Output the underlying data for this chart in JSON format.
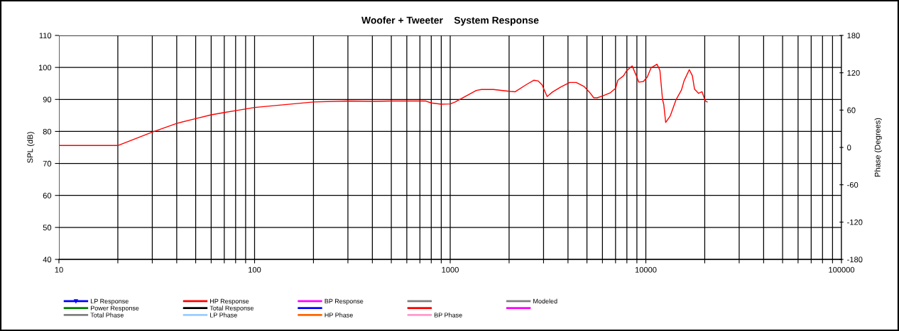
{
  "chart_data": {
    "type": "line",
    "title": "Woofer + Tweeter    System Response",
    "ylabel": "SPL (dB)",
    "y2label": "Phase (Degrees)",
    "log": "x",
    "xlim": [
      10,
      100000
    ],
    "ylim": [
      40,
      110
    ],
    "y2lim": [
      -180,
      180
    ],
    "xticks": [
      10,
      {
        "value": 20,
        "label": null
      },
      {
        "value": 30,
        "label": null
      },
      {
        "value": 40,
        "label": null
      },
      {
        "value": 50,
        "label": null
      },
      {
        "value": 60,
        "label": null
      },
      {
        "value": 70,
        "label": null
      },
      {
        "value": 80,
        "label": null
      },
      {
        "value": 90,
        "label": null
      },
      100,
      {
        "value": 200,
        "label": null
      },
      {
        "value": 300,
        "label": null
      },
      {
        "value": 400,
        "label": null
      },
      {
        "value": 500,
        "label": null
      },
      {
        "value": 600,
        "label": null
      },
      {
        "value": 700,
        "label": null
      },
      {
        "value": 800,
        "label": null
      },
      {
        "value": 900,
        "label": null
      },
      1000,
      {
        "value": 2000,
        "label": null
      },
      {
        "value": 3000,
        "label": null
      },
      {
        "value": 4000,
        "label": null
      },
      {
        "value": 5000,
        "label": null
      },
      {
        "value": 6000,
        "label": null
      },
      {
        "value": 7000,
        "label": null
      },
      {
        "value": 8000,
        "label": null
      },
      {
        "value": 9000,
        "label": null
      },
      10000,
      {
        "value": 20000,
        "label": null
      },
      {
        "value": 30000,
        "label": null
      },
      {
        "value": 40000,
        "label": null
      },
      {
        "value": 50000,
        "label": null
      },
      {
        "value": 60000,
        "label": null
      },
      {
        "value": 70000,
        "label": null
      },
      {
        "value": 80000,
        "label": null
      },
      {
        "value": 90000,
        "label": null
      },
      100000
    ],
    "yticks": [
      40,
      50,
      60,
      70,
      80,
      90,
      100,
      110
    ],
    "y2ticks": [
      -180,
      -120,
      -60,
      0,
      60,
      120,
      180
    ],
    "grid": true,
    "legend": "bottom",
    "marker": "none",
    "line_style": "solid",
    "series": [
      {
        "name": "LP Response",
        "color": "#0000ff",
        "marker": "triangle"
      },
      {
        "name": "HP Response",
        "color": "#ff0000",
        "x": [
          10,
          20,
          30,
          40,
          50,
          60,
          70,
          80,
          100,
          200,
          300,
          400,
          500,
          700,
          750,
          800,
          900,
          1000,
          1060,
          1359,
          1445,
          1663,
          2031,
          2150,
          2445,
          2680,
          2810,
          2945,
          3130,
          3330,
          3655,
          4075,
          4410,
          4840,
          5145,
          5420,
          5640,
          6010,
          6590,
          7010,
          7190,
          7690,
          7940,
          8510,
          8940,
          9210,
          9710,
          10170,
          10640,
          11400,
          11800,
          12170,
          12350,
          12630,
          13340,
          14290,
          15200,
          15680,
          16680,
          17290,
          17740,
          18600,
          19380,
          20100,
          20600
        ],
        "values": [
          75.6,
          75.6,
          79.8,
          82.5,
          84.0,
          85.2,
          85.9,
          86.5,
          87.5,
          89.2,
          89.5,
          89.4,
          89.5,
          89.5,
          89.5,
          88.9,
          88.5,
          88.6,
          89.2,
          92.8,
          93.1,
          93.1,
          92.5,
          92.4,
          94.6,
          96.0,
          95.8,
          94.6,
          90.9,
          92.3,
          93.8,
          95.3,
          95.3,
          94.0,
          92.3,
          90.5,
          90.5,
          91.1,
          92.1,
          93.5,
          96.0,
          97.4,
          98.8,
          100.5,
          97.4,
          95.4,
          95.6,
          97.0,
          99.9,
          101.0,
          99.1,
          90.0,
          88.4,
          82.8,
          84.9,
          90.0,
          92.9,
          95.8,
          99.3,
          97.4,
          93.2,
          91.9,
          92.4,
          89.6,
          89.2
        ]
      },
      {
        "name": "BP Response",
        "color": "#ff00ff"
      },
      {
        "color": "#808080"
      },
      {
        "name": "Modeled",
        "color": "#808080"
      },
      {
        "name": "Power Response",
        "color": "#008000"
      },
      {
        "name": "Total Response",
        "color": "#000000"
      },
      {
        "color": "#0000ff"
      },
      {
        "color": "#ff0000"
      },
      {
        "color": "#ff00ff"
      },
      {
        "name": "Total Phase",
        "color": "#808080"
      },
      {
        "name": "LP Phase",
        "color": "#99ccff"
      },
      {
        "name": "HP Phase",
        "color": "#ff6600"
      },
      {
        "name": "BP Phase",
        "color": "#ff99cc"
      }
    ]
  }
}
